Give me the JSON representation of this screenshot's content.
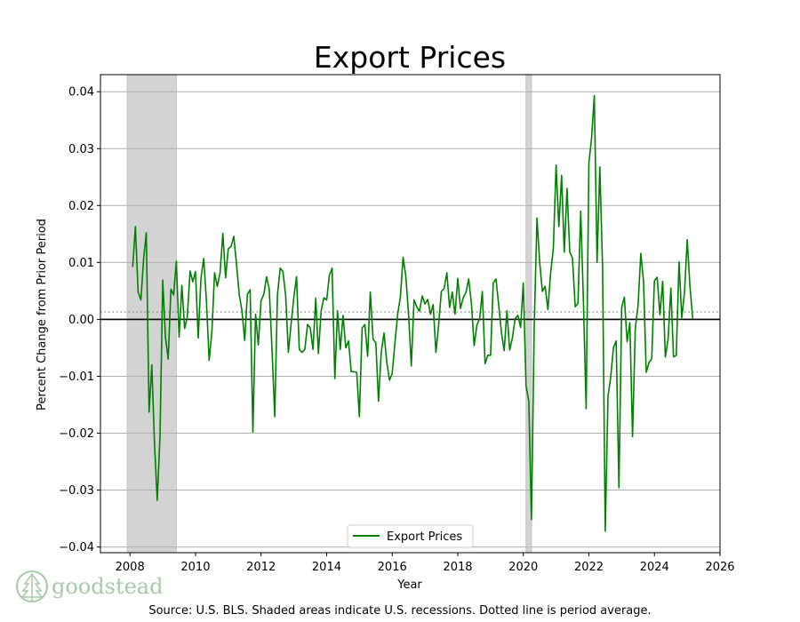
{
  "chart_data": {
    "type": "line",
    "title": "Export Prices",
    "xlabel": "Year",
    "ylabel": "Percent Change from Prior Period",
    "xlim": [
      2007.1,
      2026.0
    ],
    "ylim": [
      -0.041,
      0.043
    ],
    "x_ticks": [
      2008,
      2010,
      2012,
      2014,
      2016,
      2018,
      2020,
      2022,
      2024,
      2026
    ],
    "y_ticks": [
      0.04,
      0.03,
      0.02,
      0.01,
      0.0,
      -0.01,
      -0.02,
      -0.03,
      -0.04
    ],
    "x_tick_labels": [
      "2008",
      "2010",
      "2012",
      "2014",
      "2016",
      "2018",
      "2020",
      "2022",
      "2024",
      "2026"
    ],
    "y_tick_labels": [
      "0.04",
      "0.03",
      "0.02",
      "0.01",
      "0.00",
      "−0.01",
      "−0.02",
      "−0.03",
      "−0.04"
    ],
    "grid": "horizontal",
    "legend_position": "bottom-center",
    "average": 0.0013,
    "zero_line": 0.0,
    "recessions": [
      [
        2007.917,
        2009.417
      ],
      [
        2020.083,
        2020.25
      ]
    ],
    "colors": {
      "line": "#008000",
      "recession": "#d3d3d3",
      "grid": "#b0b0b0",
      "average": "#777777"
    },
    "series": [
      {
        "name": "Export Prices",
        "x": [
          2008.083,
          2008.167,
          2008.25,
          2008.333,
          2008.417,
          2008.5,
          2008.583,
          2008.667,
          2008.75,
          2008.833,
          2008.917,
          2009.0,
          2009.083,
          2009.167,
          2009.25,
          2009.333,
          2009.417,
          2009.5,
          2009.583,
          2009.667,
          2009.75,
          2009.833,
          2009.917,
          2010.0,
          2010.083,
          2010.167,
          2010.25,
          2010.333,
          2010.417,
          2010.5,
          2010.583,
          2010.667,
          2010.75,
          2010.833,
          2010.917,
          2011.0,
          2011.083,
          2011.167,
          2011.25,
          2011.333,
          2011.417,
          2011.5,
          2011.583,
          2011.667,
          2011.75,
          2011.833,
          2011.917,
          2012.0,
          2012.083,
          2012.167,
          2012.25,
          2012.333,
          2012.417,
          2012.5,
          2012.583,
          2012.667,
          2012.75,
          2012.833,
          2012.917,
          2013.0,
          2013.083,
          2013.167,
          2013.25,
          2013.333,
          2013.417,
          2013.5,
          2013.583,
          2013.667,
          2013.75,
          2013.833,
          2013.917,
          2014.0,
          2014.083,
          2014.167,
          2014.25,
          2014.333,
          2014.417,
          2014.5,
          2014.583,
          2014.667,
          2014.75,
          2014.833,
          2014.917,
          2015.0,
          2015.083,
          2015.167,
          2015.25,
          2015.333,
          2015.417,
          2015.5,
          2015.583,
          2015.667,
          2015.75,
          2015.833,
          2015.917,
          2016.0,
          2016.083,
          2016.167,
          2016.25,
          2016.333,
          2016.417,
          2016.5,
          2016.583,
          2016.667,
          2016.75,
          2016.833,
          2016.917,
          2017.0,
          2017.083,
          2017.167,
          2017.25,
          2017.333,
          2017.417,
          2017.5,
          2017.583,
          2017.667,
          2017.75,
          2017.833,
          2017.917,
          2018.0,
          2018.083,
          2018.167,
          2018.25,
          2018.333,
          2018.417,
          2018.5,
          2018.583,
          2018.667,
          2018.75,
          2018.833,
          2018.917,
          2019.0,
          2019.083,
          2019.167,
          2019.25,
          2019.333,
          2019.417,
          2019.5,
          2019.583,
          2019.667,
          2019.75,
          2019.833,
          2019.917,
          2020.0,
          2020.083,
          2020.167,
          2020.25,
          2020.333,
          2020.417,
          2020.5,
          2020.583,
          2020.667,
          2020.75,
          2020.833,
          2020.917,
          2021.0,
          2021.083,
          2021.167,
          2021.25,
          2021.333,
          2021.417,
          2021.5,
          2021.583,
          2021.667,
          2021.75,
          2021.833,
          2021.917,
          2022.0,
          2022.083,
          2022.167,
          2022.25,
          2022.333,
          2022.417,
          2022.5,
          2022.583,
          2022.667,
          2022.75,
          2022.833,
          2022.917,
          2023.0,
          2023.083,
          2023.167,
          2023.25,
          2023.333,
          2023.417,
          2023.5,
          2023.583,
          2023.667,
          2023.75,
          2023.833,
          2023.917,
          2024.0,
          2024.083,
          2024.167,
          2024.25,
          2024.333,
          2024.417,
          2024.5,
          2024.583,
          2024.667,
          2024.75,
          2024.833,
          2024.917,
          2025.0,
          2025.083,
          2025.167
        ],
        "y": [
          0.0092,
          0.0163,
          0.0048,
          0.0034,
          0.0107,
          0.0152,
          -0.0163,
          -0.008,
          -0.0218,
          -0.0318,
          -0.0205,
          0.0069,
          -0.0031,
          -0.007,
          0.0053,
          0.0043,
          0.0102,
          -0.0031,
          0.006,
          -0.0016,
          0.0004,
          0.0085,
          0.0066,
          0.0084,
          -0.0033,
          0.0073,
          0.0107,
          0.0033,
          -0.0072,
          -0.0021,
          0.0082,
          0.0058,
          0.0082,
          0.0151,
          0.0073,
          0.0124,
          0.0128,
          0.0146,
          0.0098,
          0.0044,
          0.0015,
          -0.0037,
          0.0044,
          0.0052,
          -0.0198,
          0.0009,
          -0.0045,
          0.0033,
          0.0044,
          0.0075,
          0.0053,
          -0.0053,
          -0.0171,
          0.0042,
          0.009,
          0.0084,
          0.0041,
          -0.0058,
          -0.0008,
          0.0039,
          0.0075,
          -0.0053,
          -0.0058,
          -0.0053,
          -0.0009,
          -0.0015,
          -0.0053,
          0.0037,
          -0.006,
          0.0015,
          0.0038,
          0.0034,
          0.0077,
          0.009,
          -0.0104,
          0.0015,
          -0.0053,
          0.0007,
          -0.005,
          -0.0038,
          -0.0092,
          -0.0092,
          -0.0093,
          -0.0171,
          -0.0015,
          -0.0009,
          -0.0065,
          0.0048,
          -0.0035,
          -0.0041,
          -0.0144,
          -0.0058,
          -0.0024,
          -0.0075,
          -0.0107,
          -0.0095,
          -0.0041,
          0.0009,
          0.0039,
          0.0109,
          0.0075,
          0.0007,
          -0.0082,
          0.0034,
          0.0022,
          0.0014,
          0.0041,
          0.0027,
          0.0035,
          0.0009,
          0.0026,
          -0.0058,
          -0.0009,
          0.0049,
          0.0054,
          0.0082,
          0.0021,
          0.0048,
          0.0009,
          0.0072,
          0.0019,
          0.0038,
          0.0047,
          0.0071,
          0.0027,
          -0.0046,
          -0.001,
          0.0001,
          0.0049,
          -0.0078,
          -0.0063,
          -0.0063,
          0.0064,
          0.0071,
          0.0024,
          -0.0023,
          -0.0055,
          0.0015,
          -0.0054,
          -0.0033,
          0.0001,
          0.0007,
          -0.0014,
          0.0064,
          -0.0117,
          -0.0144,
          -0.0352,
          -0.0013,
          0.0178,
          0.0099,
          0.0049,
          0.0058,
          0.0017,
          0.0081,
          0.0124,
          0.0271,
          0.0163,
          0.0253,
          0.0118,
          0.023,
          0.0118,
          0.0108,
          0.0022,
          0.0028,
          0.019,
          0.0034,
          -0.0157,
          0.0275,
          0.0318,
          0.0393,
          0.01,
          0.0268,
          0.0092,
          -0.0372,
          -0.0135,
          -0.0101,
          -0.005,
          -0.0038,
          -0.0296,
          0.0021,
          0.0039,
          -0.0039,
          -0.0006,
          -0.0206,
          -0.0016,
          0.0024,
          0.0116,
          0.0066,
          -0.0093,
          -0.0076,
          -0.0069,
          0.0068,
          0.0074,
          0.0008,
          0.0067,
          -0.0066,
          -0.0035,
          0.0055,
          -0.0066,
          -0.0063,
          0.0101,
          0.0003,
          0.0048,
          0.014,
          0.0058,
          0.0001
        ]
      }
    ]
  },
  "logo": {
    "text": "goodstead"
  },
  "footer": {
    "source": "Source: U.S. BLS. Shaded areas indicate U.S. recessions. Dotted line is period average."
  }
}
